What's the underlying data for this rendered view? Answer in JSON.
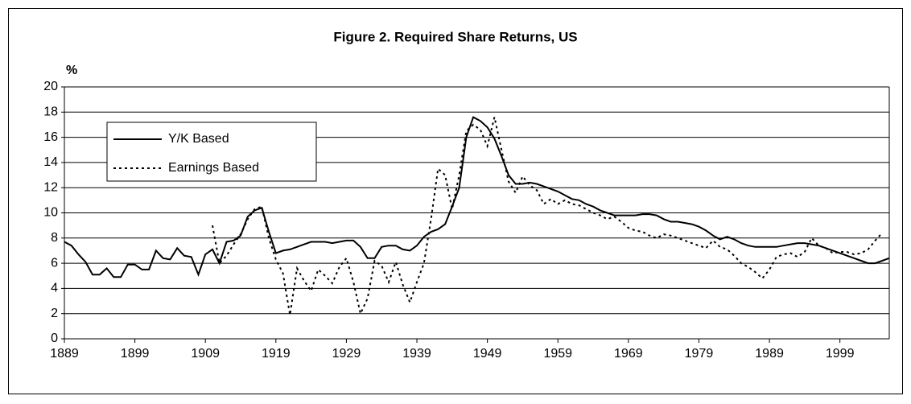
{
  "chart_data": {
    "type": "line",
    "title": "Figure 2. Required Share Returns, US",
    "y_label": "%",
    "x": [
      1889,
      1890,
      1891,
      1892,
      1893,
      1894,
      1895,
      1896,
      1897,
      1898,
      1899,
      1900,
      1901,
      1902,
      1903,
      1904,
      1905,
      1906,
      1907,
      1908,
      1909,
      1910,
      1911,
      1912,
      1913,
      1914,
      1915,
      1916,
      1917,
      1918,
      1919,
      1920,
      1921,
      1922,
      1923,
      1924,
      1925,
      1926,
      1927,
      1928,
      1929,
      1930,
      1931,
      1932,
      1933,
      1934,
      1935,
      1936,
      1937,
      1938,
      1939,
      1940,
      1941,
      1942,
      1943,
      1944,
      1945,
      1946,
      1947,
      1948,
      1949,
      1950,
      1951,
      1952,
      1953,
      1954,
      1955,
      1956,
      1957,
      1958,
      1959,
      1960,
      1961,
      1962,
      1963,
      1964,
      1965,
      1966,
      1967,
      1968,
      1969,
      1970,
      1971,
      1972,
      1973,
      1974,
      1975,
      1976,
      1977,
      1978,
      1979,
      1980,
      1981,
      1982,
      1983,
      1984,
      1985,
      1986,
      1987,
      1988,
      1989,
      1990,
      1991,
      1992,
      1993,
      1994,
      1995,
      1996,
      1997,
      1998,
      1999,
      2000,
      2001,
      2002,
      2003,
      2004,
      2005,
      2006
    ],
    "series": [
      {
        "name": "Y/K Based",
        "color": "#000000",
        "dash": "solid",
        "values": [
          7.7,
          7.4,
          6.7,
          6.1,
          5.1,
          5.1,
          5.6,
          4.9,
          4.9,
          5.9,
          5.9,
          5.5,
          5.5,
          7.0,
          6.4,
          6.3,
          7.2,
          6.6,
          6.5,
          5.1,
          6.7,
          7.1,
          6.0,
          7.7,
          7.8,
          8.2,
          9.7,
          10.2,
          10.4,
          8.5,
          6.8,
          7.0,
          7.1,
          7.3,
          7.5,
          7.7,
          7.7,
          7.7,
          7.6,
          7.7,
          7.8,
          7.8,
          7.3,
          6.4,
          6.4,
          7.3,
          7.4,
          7.4,
          7.1,
          7.0,
          7.4,
          8.1,
          8.5,
          8.7,
          9.1,
          10.5,
          12.0,
          16.0,
          17.6,
          17.3,
          16.8,
          15.9,
          14.5,
          13.0,
          12.3,
          12.3,
          12.4,
          12.3,
          12.1,
          11.9,
          11.7,
          11.4,
          11.1,
          11.0,
          10.7,
          10.5,
          10.2,
          10.0,
          9.8,
          9.8,
          9.8,
          9.8,
          9.9,
          9.9,
          9.8,
          9.5,
          9.3,
          9.3,
          9.2,
          9.1,
          8.9,
          8.6,
          8.2,
          7.9,
          8.1,
          7.9,
          7.6,
          7.4,
          7.3,
          7.3,
          7.3,
          7.3,
          7.4,
          7.5,
          7.6,
          7.6,
          7.5,
          7.4,
          7.2,
          7.0,
          6.8,
          6.6,
          6.4,
          6.2,
          6.0,
          6.0,
          6.2,
          6.4
        ]
      },
      {
        "name": "Earnings Based",
        "color": "#000000",
        "dash": "dotted",
        "values": [
          null,
          null,
          null,
          null,
          null,
          null,
          null,
          null,
          null,
          null,
          null,
          null,
          null,
          null,
          null,
          null,
          null,
          null,
          null,
          null,
          null,
          9.0,
          6.0,
          6.6,
          7.5,
          8.3,
          9.5,
          10.3,
          10.5,
          8.0,
          6.3,
          5.2,
          1.9,
          5.6,
          4.6,
          3.8,
          5.5,
          5.0,
          4.4,
          5.7,
          6.4,
          4.5,
          2.0,
          3.2,
          6.2,
          5.8,
          4.5,
          6.1,
          4.3,
          2.9,
          4.5,
          6.0,
          9.5,
          13.5,
          13.0,
          10.3,
          13.0,
          16.5,
          17.0,
          16.6,
          15.3,
          17.6,
          15.0,
          12.5,
          11.6,
          12.9,
          12.2,
          11.8,
          10.7,
          11.1,
          10.7,
          11.0,
          10.7,
          10.6,
          10.3,
          10.0,
          9.8,
          9.5,
          9.7,
          9.3,
          8.8,
          8.6,
          8.5,
          8.2,
          8.0,
          8.3,
          8.2,
          8.0,
          7.8,
          7.6,
          7.4,
          7.2,
          7.8,
          7.3,
          7.1,
          6.6,
          6.0,
          5.7,
          5.3,
          4.8,
          5.5,
          6.5,
          6.7,
          6.8,
          6.5,
          6.9,
          8.0,
          7.4,
          7.2,
          6.8,
          6.9,
          6.9,
          6.7,
          6.8,
          7.1,
          7.8,
          8.4,
          null
        ]
      }
    ],
    "xlim": [
      1889,
      2006
    ],
    "xticks": [
      1889,
      1899,
      1909,
      1919,
      1929,
      1939,
      1949,
      1959,
      1969,
      1979,
      1989,
      1999
    ],
    "ylim": [
      0,
      20
    ],
    "yticks": [
      0,
      2,
      4,
      6,
      8,
      10,
      12,
      14,
      16,
      18,
      20
    ],
    "grid": true,
    "legend": "upper left"
  }
}
